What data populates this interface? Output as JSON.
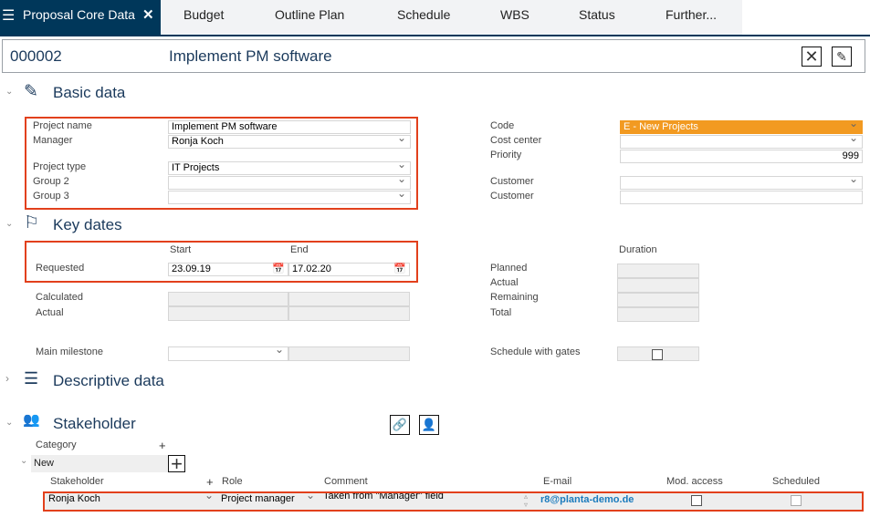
{
  "tabs": {
    "active": "Proposal Core Data",
    "items": [
      "Budget",
      "Outline Plan",
      "Schedule",
      "WBS",
      "Status",
      "Further..."
    ]
  },
  "header": {
    "id": "000002",
    "title": "Implement PM software"
  },
  "basic": {
    "title": "Basic data",
    "left": [
      {
        "label": "Project name",
        "value": "Implement PM software"
      },
      {
        "label": "Manager",
        "value": "Ronja Koch"
      },
      {
        "label": "Project type",
        "value": "IT Projects"
      },
      {
        "label": "Group 2",
        "value": ""
      },
      {
        "label": "Group 3",
        "value": ""
      }
    ],
    "right": [
      {
        "label": "Code",
        "value": "E - New Projects"
      },
      {
        "label": "Cost center",
        "value": ""
      },
      {
        "label": "Priority",
        "value": "999"
      },
      {
        "label": "Customer",
        "value": ""
      },
      {
        "label": "Customer",
        "value": ""
      }
    ],
    "code_color": "#f29a21"
  },
  "keydates": {
    "title": "Key dates",
    "start": "Start",
    "end": "End",
    "requested": "Requested",
    "req_start": "23.09.19",
    "req_end": "17.02.20",
    "calculated": "Calculated",
    "actual": "Actual",
    "duration": "Duration",
    "planned": "Planned",
    "d_actual": "Actual",
    "remaining": "Remaining",
    "total": "Total",
    "main_milestone": "Main milestone",
    "schedule_gates": "Schedule with gates"
  },
  "descriptive": {
    "title": "Descriptive data"
  },
  "stakeholder": {
    "title": "Stakeholder",
    "category": "Category",
    "plus": "+",
    "new": "New",
    "columns": [
      "Stakeholder",
      "Role",
      "Comment",
      "E-mail",
      "Mod. access",
      "Scheduled"
    ],
    "row": {
      "stakeholder": "Ronja Koch",
      "role": "Project manager",
      "comment": "Taken from \"Manager\" field",
      "email": "r8@planta-demo.de"
    }
  }
}
